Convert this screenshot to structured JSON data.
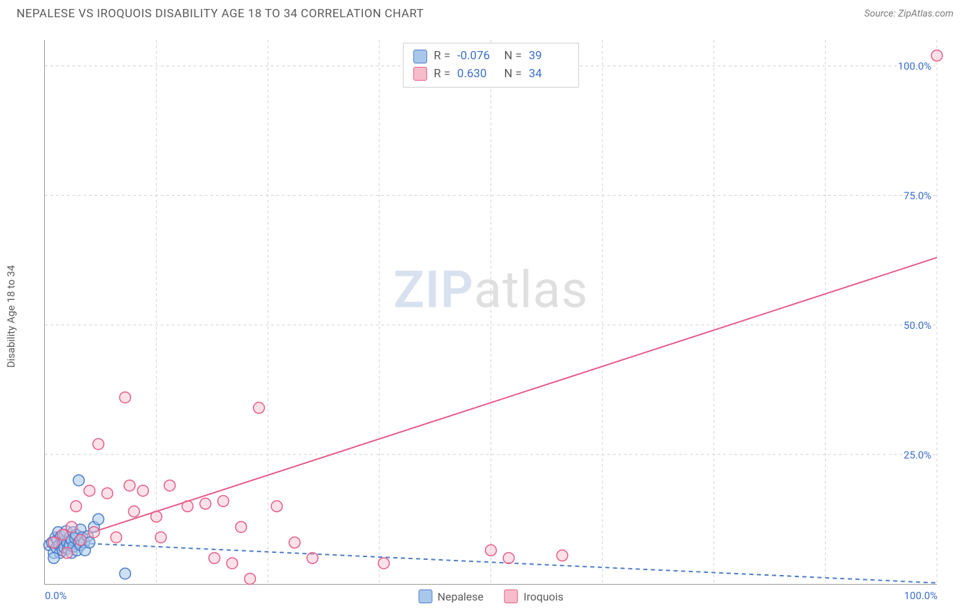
{
  "header": {
    "title": "NEPALESE VS IROQUOIS DISABILITY AGE 18 TO 34 CORRELATION CHART",
    "source": "Source: ZipAtlas.com"
  },
  "chart": {
    "type": "scatter",
    "background_color": "#ffffff",
    "grid_color": "#d0d0d0",
    "axis_color": "#999999",
    "ylabel": "Disability Age 18 to 34",
    "label_fontsize": 15,
    "label_color": "#5a5a5a",
    "tick_color": "#3b6fc9",
    "tick_fontsize": 15,
    "xlim": [
      0,
      100
    ],
    "ylim": [
      0,
      105
    ],
    "xticks": [
      {
        "v": 0,
        "label": "0.0%"
      },
      {
        "v": 100,
        "label": "100.0%"
      }
    ],
    "yticks": [
      {
        "v": 25,
        "label": "25.0%"
      },
      {
        "v": 50,
        "label": "50.0%"
      },
      {
        "v": 75,
        "label": "75.0%"
      },
      {
        "v": 100,
        "label": "100.0%"
      }
    ],
    "grid_x": [
      12.5,
      25,
      37.5,
      50,
      62.5,
      75,
      87.5,
      100
    ],
    "marker_radius": 8,
    "marker_stroke_width": 1.5,
    "trend_line_width": 2,
    "series": [
      {
        "name": "Nepalese",
        "fill": "#a9c7eb",
        "stroke": "#4a7cc7",
        "fill_opacity": 0.55,
        "trend": {
          "x1": 0,
          "y1": 8.2,
          "x2": 100,
          "y2": 0.2,
          "dash": "6,5",
          "color": "#4a7cc7"
        },
        "points": [
          [
            0.5,
            7.5
          ],
          [
            0.8,
            8.0
          ],
          [
            1.0,
            6.0
          ],
          [
            1.2,
            9.0
          ],
          [
            1.3,
            7.0
          ],
          [
            1.4,
            8.5
          ],
          [
            1.5,
            10.0
          ],
          [
            1.6,
            7.5
          ],
          [
            1.7,
            6.0
          ],
          [
            1.8,
            9.2
          ],
          [
            2.0,
            8.0
          ],
          [
            2.0,
            6.5
          ],
          [
            2.2,
            9.5
          ],
          [
            2.2,
            7.0
          ],
          [
            2.4,
            10.2
          ],
          [
            2.5,
            8.0
          ],
          [
            2.6,
            6.8
          ],
          [
            2.8,
            7.5
          ],
          [
            2.8,
            9.0
          ],
          [
            3.0,
            8.5
          ],
          [
            3.0,
            6.0
          ],
          [
            3.2,
            10.0
          ],
          [
            3.2,
            7.2
          ],
          [
            3.4,
            8.8
          ],
          [
            3.5,
            9.5
          ],
          [
            3.6,
            6.5
          ],
          [
            3.8,
            8.0
          ],
          [
            4.0,
            10.5
          ],
          [
            4.0,
            7.5
          ],
          [
            4.2,
            9.0
          ],
          [
            4.4,
            8.0
          ],
          [
            4.5,
            6.5
          ],
          [
            4.8,
            9.2
          ],
          [
            5.0,
            8.0
          ],
          [
            5.5,
            11.0
          ],
          [
            6.0,
            12.5
          ],
          [
            3.8,
            20.0
          ],
          [
            9.0,
            2.0
          ],
          [
            1.0,
            5.0
          ]
        ]
      },
      {
        "name": "Iroquois",
        "fill": "#f7bccb",
        "stroke": "#e65b86",
        "fill_opacity": 0.45,
        "trend": {
          "x1": 0,
          "y1": 7.0,
          "x2": 100,
          "y2": 63.0,
          "dash": "",
          "color": "#e65b86"
        },
        "points": [
          [
            1.0,
            8.0
          ],
          [
            2.0,
            9.5
          ],
          [
            2.5,
            6.0
          ],
          [
            3.0,
            11.0
          ],
          [
            3.5,
            15.0
          ],
          [
            4.0,
            8.5
          ],
          [
            5.0,
            18.0
          ],
          [
            5.5,
            10.0
          ],
          [
            6.0,
            27.0
          ],
          [
            7.0,
            17.5
          ],
          [
            8.0,
            9.0
          ],
          [
            9.0,
            36.0
          ],
          [
            9.5,
            19.0
          ],
          [
            10.0,
            14.0
          ],
          [
            11.0,
            18.0
          ],
          [
            12.5,
            13.0
          ],
          [
            13.0,
            9.0
          ],
          [
            14.0,
            19.0
          ],
          [
            16.0,
            15.0
          ],
          [
            18.0,
            15.5
          ],
          [
            19.0,
            5.0
          ],
          [
            20.0,
            16.0
          ],
          [
            21.0,
            4.0
          ],
          [
            22.0,
            11.0
          ],
          [
            23.0,
            1.0
          ],
          [
            24.0,
            34.0
          ],
          [
            26.0,
            15.0
          ],
          [
            28.0,
            8.0
          ],
          [
            30.0,
            5.0
          ],
          [
            38.0,
            4.0
          ],
          [
            50.0,
            6.5
          ],
          [
            52.0,
            5.0
          ],
          [
            58.0,
            5.5
          ],
          [
            100.0,
            102.0
          ]
        ]
      }
    ]
  },
  "stats": {
    "rows": [
      {
        "swatch_fill": "#a9c7eb",
        "swatch_stroke": "#4a7cc7",
        "r": "-0.076",
        "n": "39"
      },
      {
        "swatch_fill": "#f7bccb",
        "swatch_stroke": "#e65b86",
        "r": "0.630",
        "n": "34"
      }
    ],
    "r_label": "R =",
    "n_label": "N ="
  },
  "legend": {
    "items": [
      {
        "swatch_fill": "#a9c7eb",
        "swatch_stroke": "#4a7cc7",
        "label": "Nepalese"
      },
      {
        "swatch_fill": "#f7bccb",
        "swatch_stroke": "#e65b86",
        "label": "Iroquois"
      }
    ]
  },
  "watermark": {
    "part1": "ZIP",
    "part2": "atlas"
  }
}
